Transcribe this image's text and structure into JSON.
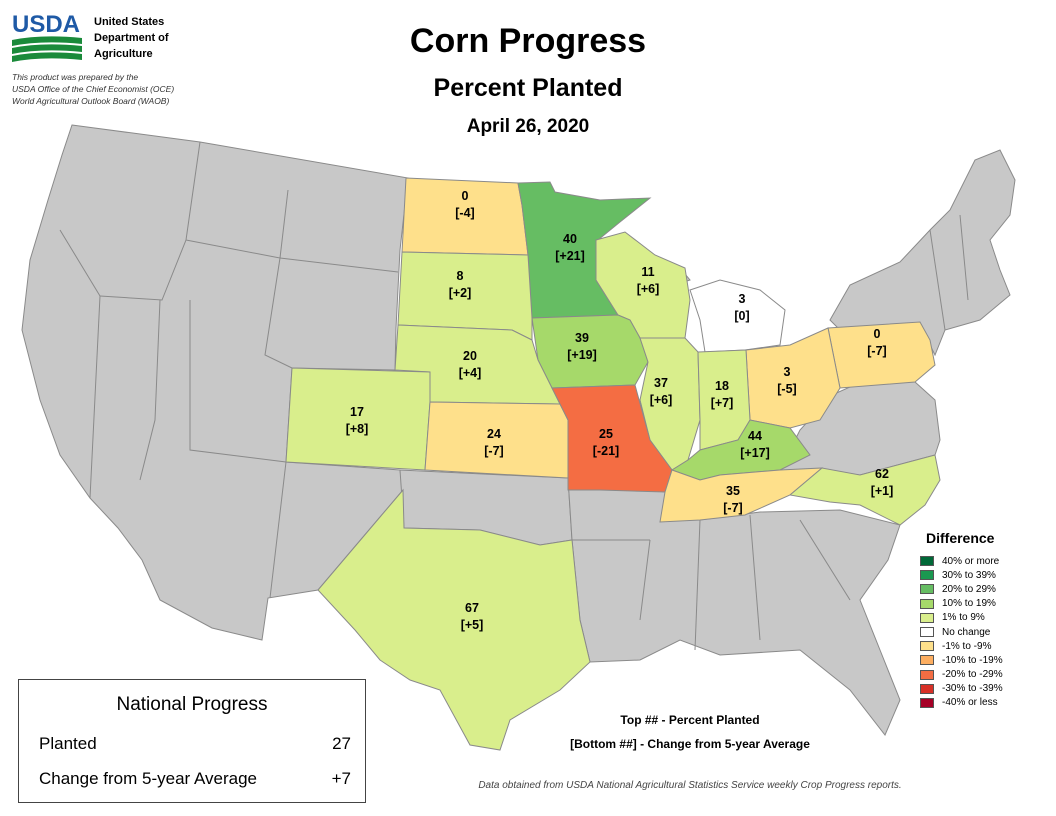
{
  "header": {
    "agency_logo_text": "USDA",
    "agency_name_lines": [
      "United States",
      "Department of",
      "Agriculture"
    ],
    "prepared_by_lines": [
      "This product was prepared by the",
      "USDA Office of the Chief Economist (OCE)",
      "World Agricultural Outlook Board (WAOB)"
    ],
    "title": "Corn Progress",
    "subtitle": "Percent Planted",
    "date": "April 26, 2020"
  },
  "colors": {
    "no_data": "#c8c8c8",
    "border": "#8a8a8a",
    "plus_1_9": "#d9ee8c",
    "plus_10_19": "#a6d96a",
    "plus_20_29": "#66bd63",
    "minus_1_9": "#fee08b",
    "minus_20_29": "#f46d43",
    "zero": "#ffffff"
  },
  "states": [
    {
      "id": "ND",
      "planted": "0",
      "change": "[-4]"
    },
    {
      "id": "MN",
      "planted": "40",
      "change": "[+21]"
    },
    {
      "id": "SD",
      "planted": "8",
      "change": "[+2]"
    },
    {
      "id": "WI",
      "planted": "11",
      "change": "[+6]"
    },
    {
      "id": "MI",
      "planted": "3",
      "change": "[0]"
    },
    {
      "id": "IA",
      "planted": "39",
      "change": "[+19]"
    },
    {
      "id": "NE",
      "planted": "20",
      "change": "[+4]"
    },
    {
      "id": "PA",
      "planted": "0",
      "change": "[-7]"
    },
    {
      "id": "OH",
      "planted": "3",
      "change": "[-5]"
    },
    {
      "id": "IL",
      "planted": "37",
      "change": "[+6]"
    },
    {
      "id": "IN",
      "planted": "18",
      "change": "[+7]"
    },
    {
      "id": "CO",
      "planted": "17",
      "change": "[+8]"
    },
    {
      "id": "KS",
      "planted": "24",
      "change": "[-7]"
    },
    {
      "id": "MO",
      "planted": "25",
      "change": "[-21]"
    },
    {
      "id": "KY",
      "planted": "44",
      "change": "[+17]"
    },
    {
      "id": "NC",
      "planted": "62",
      "change": "[+1]"
    },
    {
      "id": "TN",
      "planted": "35",
      "change": "[-7]"
    },
    {
      "id": "TX",
      "planted": "67",
      "change": "[+5]"
    }
  ],
  "legend": {
    "title": "Difference",
    "items": [
      {
        "label": "40% or more",
        "color": "#006837"
      },
      {
        "label": "30% to 39%",
        "color": "#1a9850"
      },
      {
        "label": "20% to 29%",
        "color": "#66bd63"
      },
      {
        "label": "10% to 19%",
        "color": "#a6d96a"
      },
      {
        "label": "1% to 9%",
        "color": "#d9ee8c"
      },
      {
        "label": "No change",
        "color": "#ffffff"
      },
      {
        "label": "-1% to -9%",
        "color": "#fee08b"
      },
      {
        "label": "-10% to -19%",
        "color": "#fdae61"
      },
      {
        "label": "-20% to -29%",
        "color": "#f46d43"
      },
      {
        "label": "-30% to -39%",
        "color": "#d73027"
      },
      {
        "label": "-40% or less",
        "color": "#a50026"
      }
    ]
  },
  "national": {
    "title": "National Progress",
    "planted_label": "Planted",
    "planted_value": "27",
    "change_label": "Change from 5-year Average",
    "change_value": "+7"
  },
  "key": {
    "top": "Top ## - Percent Planted",
    "bottom": "[Bottom ##] - Change from 5-year Average"
  },
  "source": "Data obtained from USDA National Agricultural Statistics Service weekly Crop Progress reports."
}
